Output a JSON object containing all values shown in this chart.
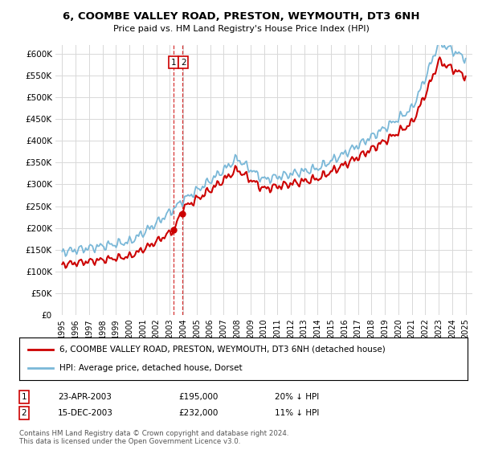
{
  "title": "6, COOMBE VALLEY ROAD, PRESTON, WEYMOUTH, DT3 6NH",
  "subtitle": "Price paid vs. HM Land Registry's House Price Index (HPI)",
  "ylabel_ticks": [
    "£0",
    "£50K",
    "£100K",
    "£150K",
    "£200K",
    "£250K",
    "£300K",
    "£350K",
    "£400K",
    "£450K",
    "£500K",
    "£550K",
    "£600K"
  ],
  "ylim": [
    0,
    620000
  ],
  "xlim_start": 1994.5,
  "xlim_end": 2025.5,
  "hpi_color": "#7ab8d8",
  "price_color": "#cc0000",
  "transaction1_date": 2003.31,
  "transaction1_price": 195000,
  "transaction1_label": "1",
  "transaction2_date": 2003.96,
  "transaction2_price": 232000,
  "transaction2_label": "2",
  "legend_line1": "6, COOMBE VALLEY ROAD, PRESTON, WEYMOUTH, DT3 6NH (detached house)",
  "legend_line2": "HPI: Average price, detached house, Dorset",
  "table_row1_num": "1",
  "table_row1_date": "23-APR-2003",
  "table_row1_price": "£195,000",
  "table_row1_note": "20% ↓ HPI",
  "table_row2_num": "2",
  "table_row2_date": "15-DEC-2003",
  "table_row2_price": "£232,000",
  "table_row2_note": "11% ↓ HPI",
  "footnote": "Contains HM Land Registry data © Crown copyright and database right 2024.\nThis data is licensed under the Open Government Licence v3.0.",
  "background_color": "#ffffff",
  "grid_color": "#d8d8d8"
}
